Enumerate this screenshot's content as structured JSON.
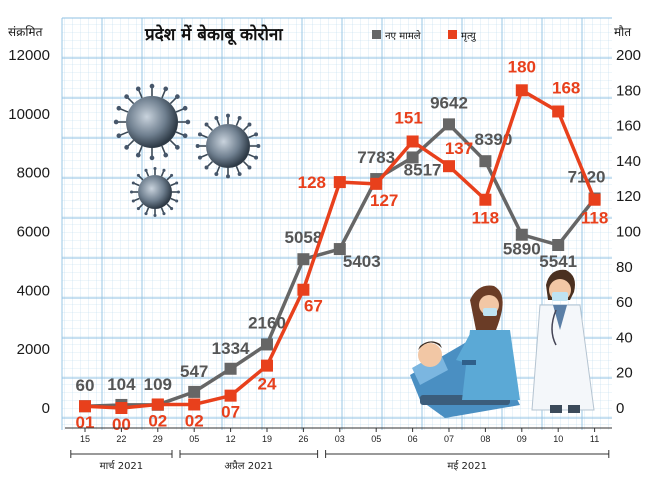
{
  "chart_data": {
    "type": "line",
    "title": "प्रदेश में बेकाबू कोरोना",
    "left_axis_label": "संक्रमित",
    "right_axis_label": "मौत",
    "left_ticks": [
      "0",
      "2000",
      "4000",
      "6000",
      "8000",
      "10000",
      "12000"
    ],
    "right_ticks": [
      "0",
      "20",
      "40",
      "60",
      "80",
      "100",
      "120",
      "140",
      "160",
      "180",
      "200"
    ],
    "ylim_left": [
      0,
      12000
    ],
    "ylim_right": [
      0,
      200
    ],
    "categories": [
      "15",
      "22",
      "29",
      "05",
      "12",
      "19",
      "26",
      "03",
      "05",
      "06",
      "07",
      "08",
      "09",
      "10",
      "11"
    ],
    "months": [
      {
        "label": "मार्च 2021",
        "from": 0,
        "to": 2
      },
      {
        "label": "अप्रैल 2021",
        "from": 3,
        "to": 6
      },
      {
        "label": "मई 2021",
        "from": 7,
        "to": 14
      }
    ],
    "series": [
      {
        "name": "नए मामले",
        "axis": "left",
        "color": "#666666",
        "values": [
          60,
          104,
          109,
          547,
          1334,
          2160,
          5058,
          5403,
          7783,
          8517,
          9642,
          8390,
          5890,
          5541,
          7120
        ],
        "labels": [
          "60",
          "104",
          "109",
          "547",
          "1334",
          "2160",
          "5058",
          "5403",
          "7783",
          "8517",
          "9642",
          "8390",
          "5890",
          "5541",
          "7120"
        ]
      },
      {
        "name": "मृत्यु",
        "axis": "right",
        "color": "#e8401c",
        "values": [
          1,
          0,
          2,
          2,
          7,
          24,
          67,
          128,
          127,
          151,
          137,
          118,
          180,
          168,
          118
        ],
        "labels": [
          "01",
          "00",
          "02",
          "02",
          "07",
          "24",
          "67",
          "128",
          "127",
          "151",
          "137",
          "118",
          "180",
          "168",
          "118"
        ]
      }
    ],
    "grid": true,
    "legend_position": "top-center"
  }
}
